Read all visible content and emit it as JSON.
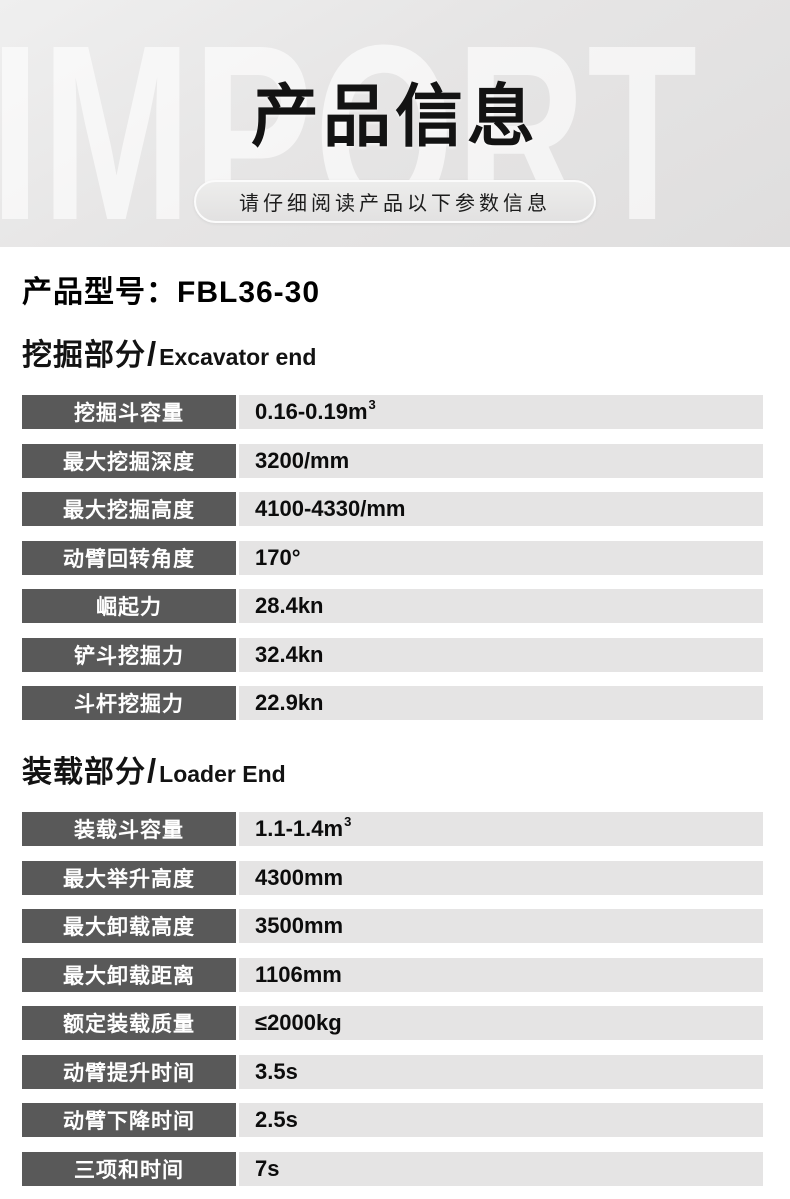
{
  "header": {
    "watermark": "IMPORT",
    "title": "产品信息",
    "subtitle": "请仔细阅读产品以下参数信息"
  },
  "product": {
    "model_label": "产品型号：",
    "model_value": "FBL36-30"
  },
  "sections": [
    {
      "title_cn": "挖掘部分",
      "separator": "/",
      "title_en": "Excavator end",
      "rows": [
        {
          "label": "挖掘斗容量",
          "value": "0.16-0.19m",
          "sup": "3"
        },
        {
          "label": "最大挖掘深度",
          "value": "3200/mm"
        },
        {
          "label": "最大挖掘高度",
          "value": "4100-4330/mm"
        },
        {
          "label": "动臂回转角度",
          "value": "170°"
        },
        {
          "label": "崛起力",
          "value": "28.4kn"
        },
        {
          "label": "铲斗挖掘力",
          "value": "32.4kn"
        },
        {
          "label": "斗杆挖掘力",
          "value": "22.9kn"
        }
      ]
    },
    {
      "title_cn": "装载部分",
      "separator": "/",
      "title_en": "Loader End",
      "rows": [
        {
          "label": "装载斗容量",
          "value": "1.1-1.4m",
          "sup": "3"
        },
        {
          "label": "最大举升高度",
          "value": "4300mm"
        },
        {
          "label": "最大卸载高度",
          "value": "3500mm"
        },
        {
          "label": "最大卸载距离",
          "value": "1106mm"
        },
        {
          "label": "额定装载质量",
          "value": "≤2000kg"
        },
        {
          "label": "动臂提升时间",
          "value": "3.5s"
        },
        {
          "label": "动臂下降时间",
          "value": "2.5s"
        },
        {
          "label": "三项和时间",
          "value": "7s"
        }
      ]
    }
  ],
  "colors": {
    "header_bg": "#e6e5e5",
    "watermark_text": "#f2f1f1",
    "pill_border": "#fbfbfb",
    "label_cell_bg": "#595959",
    "label_cell_text": "#ffffff",
    "value_cell_bg": "#e5e4e4",
    "value_cell_text": "#0c0c0c"
  }
}
